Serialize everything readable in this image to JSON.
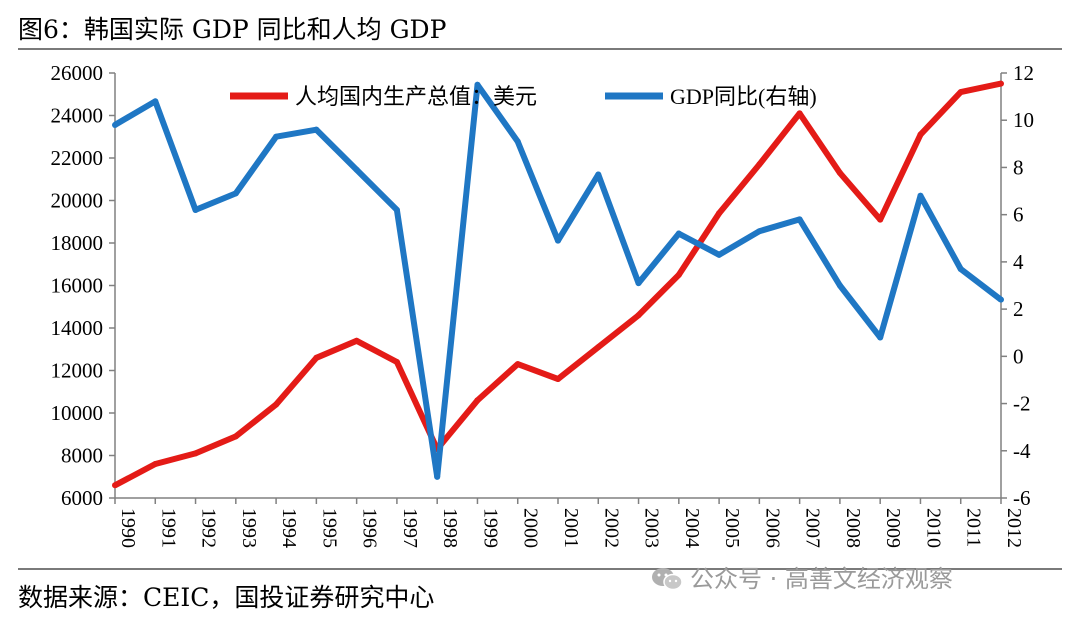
{
  "title": "图6：韩国实际 GDP 同比和人均 GDP",
  "source": "数据来源：CEIC，国投证券研究中心",
  "watermark": "公众号 · 高善文经济观察",
  "chart_data": {
    "type": "line",
    "title": "图6：韩国实际 GDP 同比和人均 GDP",
    "x": [
      "1990",
      "1991",
      "1992",
      "1993",
      "1994",
      "1995",
      "1996",
      "1997",
      "1998",
      "1999",
      "2000",
      "2001",
      "2002",
      "2003",
      "2004",
      "2005",
      "2006",
      "2007",
      "2008",
      "2009",
      "2010",
      "2011",
      "2012"
    ],
    "left_axis": {
      "min": 6000,
      "max": 26000,
      "step": 2000,
      "ticks": [
        "26000",
        "24000",
        "22000",
        "20000",
        "18000",
        "16000",
        "14000",
        "12000",
        "10000",
        "8000",
        "6000"
      ]
    },
    "right_axis": {
      "min": -6,
      "max": 12,
      "step": 2,
      "ticks": [
        "12",
        "10",
        "8",
        "6",
        "4",
        "2",
        "0",
        "-2",
        "-4",
        "-6"
      ]
    },
    "series": [
      {
        "name": "人均国内生产总值：美元",
        "axis": "left",
        "color": "#e41b17",
        "values": [
          6600,
          7600,
          8100,
          8900,
          10400,
          12600,
          13400,
          12400,
          8300,
          10600,
          12300,
          11600,
          13100,
          14600,
          16500,
          19400,
          21700,
          24100,
          21300,
          19100,
          23100,
          25100,
          25500
        ]
      },
      {
        "name": "GDP同比(右轴)",
        "axis": "right",
        "color": "#1f77c4",
        "values": [
          9.8,
          10.8,
          6.2,
          6.9,
          9.3,
          9.6,
          7.9,
          6.2,
          -5.1,
          11.5,
          9.1,
          4.9,
          7.7,
          3.1,
          5.2,
          4.3,
          5.3,
          5.8,
          3.0,
          0.8,
          6.8,
          3.7,
          2.4
        ]
      }
    ],
    "legend_position": "top-center",
    "grid": false
  }
}
